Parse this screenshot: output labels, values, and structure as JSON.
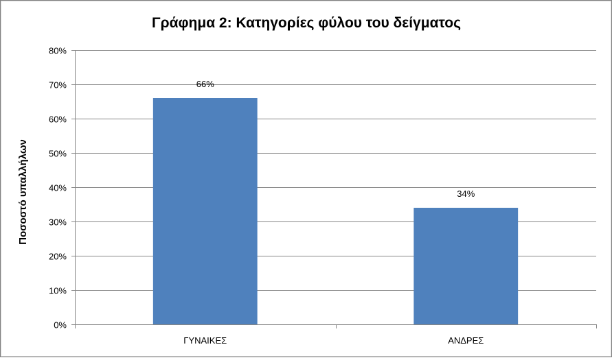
{
  "chart_data": {
    "type": "bar",
    "title": "Γράφημα 2: Κατηγορίες φύλου του δείγματος",
    "xlabel": "",
    "ylabel": "Ποσοστό υπαλλήλων",
    "categories": [
      "ΓΥΝΑΙΚΕΣ",
      "ΑΝΔΡΕΣ"
    ],
    "values": [
      0.66,
      0.34
    ],
    "data_labels": [
      "66%",
      "34%"
    ],
    "ylim": [
      0,
      0.8
    ],
    "y_ticks": [
      0,
      0.1,
      0.2,
      0.3,
      0.4,
      0.5,
      0.6,
      0.7,
      0.8
    ],
    "y_tick_labels": [
      "0%",
      "10%",
      "20%",
      "30%",
      "40%",
      "50%",
      "60%",
      "70%",
      "80%"
    ],
    "grid": true,
    "legend": "none",
    "bar_color": "#4f81bd"
  }
}
